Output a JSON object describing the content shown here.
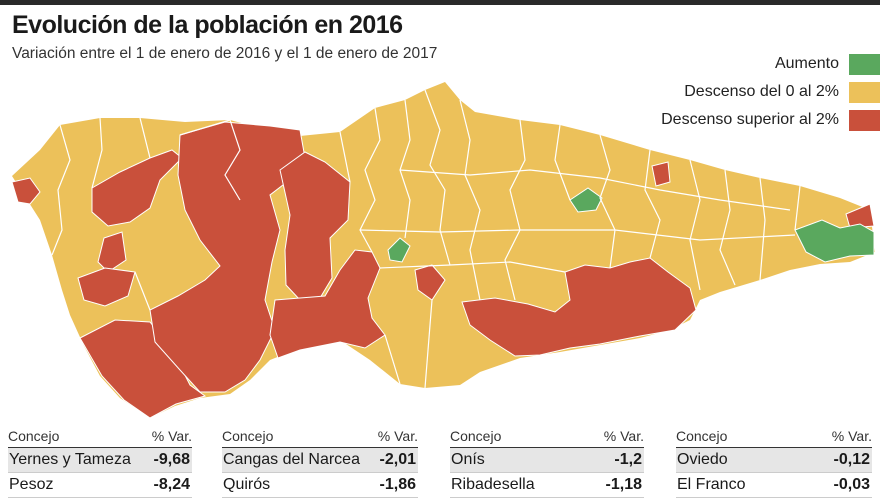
{
  "header": {
    "title": "Evolución de la población en 2016",
    "subtitle": "Variación entre el 1 de enero de 2016 y el 1 de enero de 2017"
  },
  "legend": [
    {
      "label": "Aumento",
      "color": "#5aa85e"
    },
    {
      "label": "Descenso del 0 al 2%",
      "color": "#ecc15a"
    },
    {
      "label": "Descenso superior al 2%",
      "color": "#c9503b"
    }
  ],
  "map": {
    "colors": {
      "base": "#ecc15a",
      "decline_high": "#c9503b",
      "increase": "#5aa85e",
      "border": "#ffffff"
    }
  },
  "tables": [
    {
      "col_name": "Concejo",
      "col_value": "% Var.",
      "rows": [
        {
          "name": "Yernes y Tameza",
          "value": "-9,68"
        },
        {
          "name": "Pesoz",
          "value": "-8,24"
        }
      ]
    },
    {
      "col_name": "Concejo",
      "col_value": "% Var.",
      "rows": [
        {
          "name": "Cangas del Narcea",
          "value": "-2,01"
        },
        {
          "name": "Quirós",
          "value": "-1,86"
        }
      ]
    },
    {
      "col_name": "Concejo",
      "col_value": "% Var.",
      "rows": [
        {
          "name": "Onís",
          "value": "-1,2"
        },
        {
          "name": "Ribadesella",
          "value": "-1,18"
        }
      ]
    },
    {
      "col_name": "Concejo",
      "col_value": "% Var.",
      "rows": [
        {
          "name": "Oviedo",
          "value": "-0,12"
        },
        {
          "name": "El Franco",
          "value": "-0,03"
        }
      ]
    }
  ]
}
